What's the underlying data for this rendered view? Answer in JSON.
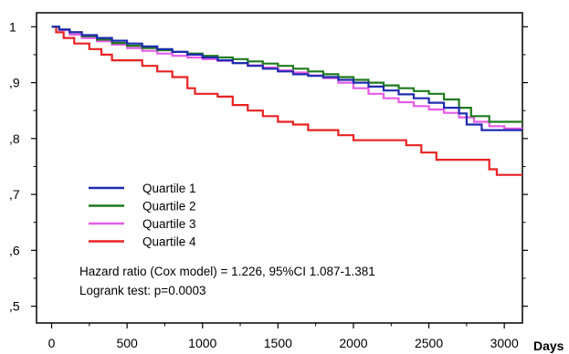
{
  "chart_data": {
    "type": "line",
    "step": true,
    "title": "",
    "xlabel": "Days",
    "ylabel": "",
    "xlim": [
      -100,
      3120
    ],
    "ylim": [
      0.47,
      1.025
    ],
    "x_ticks": [
      0,
      500,
      1000,
      1500,
      2000,
      2500,
      3000
    ],
    "x_tick_labels": [
      "0",
      "500",
      "1000",
      "1500",
      "2000",
      "2500",
      "3000"
    ],
    "y_ticks": [
      0.5,
      0.6,
      0.7,
      0.8,
      0.9,
      1.0
    ],
    "y_tick_labels": [
      ",5",
      ",6",
      ",7",
      ",8",
      ",9",
      "1"
    ],
    "grid": false,
    "legend_position": "lower-left",
    "series": [
      {
        "name": "Quartile 1",
        "color": "#1f2bb0",
        "points": [
          [
            0,
            1.0
          ],
          [
            50,
            0.995
          ],
          [
            120,
            0.99
          ],
          [
            200,
            0.985
          ],
          [
            300,
            0.98
          ],
          [
            400,
            0.975
          ],
          [
            500,
            0.97
          ],
          [
            600,
            0.965
          ],
          [
            700,
            0.96
          ],
          [
            800,
            0.955
          ],
          [
            900,
            0.95
          ],
          [
            1000,
            0.945
          ],
          [
            1100,
            0.94
          ],
          [
            1200,
            0.935
          ],
          [
            1300,
            0.93
          ],
          [
            1400,
            0.925
          ],
          [
            1500,
            0.92
          ],
          [
            1600,
            0.915
          ],
          [
            1700,
            0.912
          ],
          [
            1800,
            0.91
          ],
          [
            1900,
            0.905
          ],
          [
            2000,
            0.9
          ],
          [
            2100,
            0.893
          ],
          [
            2200,
            0.886
          ],
          [
            2300,
            0.879
          ],
          [
            2400,
            0.872
          ],
          [
            2500,
            0.864
          ],
          [
            2600,
            0.855
          ],
          [
            2700,
            0.845
          ],
          [
            2750,
            0.825
          ],
          [
            2850,
            0.815
          ],
          [
            3000,
            0.815
          ],
          [
            3120,
            0.815
          ]
        ]
      },
      {
        "name": "Quartile 2",
        "color": "#1e7a1e",
        "points": [
          [
            0,
            1.0
          ],
          [
            50,
            0.995
          ],
          [
            120,
            0.99
          ],
          [
            200,
            0.983
          ],
          [
            300,
            0.977
          ],
          [
            400,
            0.971
          ],
          [
            500,
            0.966
          ],
          [
            600,
            0.962
          ],
          [
            700,
            0.958
          ],
          [
            800,
            0.955
          ],
          [
            900,
            0.952
          ],
          [
            1000,
            0.948
          ],
          [
            1100,
            0.945
          ],
          [
            1200,
            0.942
          ],
          [
            1300,
            0.938
          ],
          [
            1400,
            0.934
          ],
          [
            1500,
            0.93
          ],
          [
            1600,
            0.925
          ],
          [
            1700,
            0.92
          ],
          [
            1800,
            0.915
          ],
          [
            1900,
            0.91
          ],
          [
            2000,
            0.905
          ],
          [
            2100,
            0.9
          ],
          [
            2200,
            0.895
          ],
          [
            2300,
            0.89
          ],
          [
            2400,
            0.885
          ],
          [
            2500,
            0.88
          ],
          [
            2600,
            0.87
          ],
          [
            2700,
            0.855
          ],
          [
            2780,
            0.84
          ],
          [
            2900,
            0.83
          ],
          [
            3120,
            0.83
          ]
        ]
      },
      {
        "name": "Quartile 3",
        "color": "#e65ce6",
        "points": [
          [
            0,
            1.0
          ],
          [
            50,
            0.994
          ],
          [
            120,
            0.986
          ],
          [
            200,
            0.98
          ],
          [
            300,
            0.974
          ],
          [
            400,
            0.968
          ],
          [
            500,
            0.962
          ],
          [
            600,
            0.957
          ],
          [
            700,
            0.952
          ],
          [
            800,
            0.948
          ],
          [
            900,
            0.945
          ],
          [
            1000,
            0.942
          ],
          [
            1100,
            0.939
          ],
          [
            1200,
            0.935
          ],
          [
            1300,
            0.931
          ],
          [
            1400,
            0.927
          ],
          [
            1500,
            0.922
          ],
          [
            1600,
            0.918
          ],
          [
            1700,
            0.913
          ],
          [
            1800,
            0.908
          ],
          [
            1900,
            0.9
          ],
          [
            2000,
            0.89
          ],
          [
            2100,
            0.88
          ],
          [
            2200,
            0.872
          ],
          [
            2300,
            0.865
          ],
          [
            2400,
            0.858
          ],
          [
            2500,
            0.852
          ],
          [
            2600,
            0.846
          ],
          [
            2700,
            0.838
          ],
          [
            2800,
            0.83
          ],
          [
            2900,
            0.822
          ],
          [
            3000,
            0.818
          ],
          [
            3120,
            0.818
          ]
        ]
      },
      {
        "name": "Quartile 4",
        "color": "#e82222",
        "points": [
          [
            0,
            1.0
          ],
          [
            30,
            0.99
          ],
          [
            80,
            0.98
          ],
          [
            150,
            0.97
          ],
          [
            250,
            0.96
          ],
          [
            330,
            0.95
          ],
          [
            400,
            0.94
          ],
          [
            600,
            0.93
          ],
          [
            700,
            0.92
          ],
          [
            800,
            0.91
          ],
          [
            900,
            0.89
          ],
          [
            950,
            0.88
          ],
          [
            1100,
            0.875
          ],
          [
            1200,
            0.86
          ],
          [
            1300,
            0.85
          ],
          [
            1400,
            0.84
          ],
          [
            1500,
            0.83
          ],
          [
            1600,
            0.825
          ],
          [
            1700,
            0.815
          ],
          [
            1900,
            0.806
          ],
          [
            2000,
            0.797
          ],
          [
            2200,
            0.797
          ],
          [
            2350,
            0.788
          ],
          [
            2450,
            0.775
          ],
          [
            2550,
            0.762
          ],
          [
            2700,
            0.762
          ],
          [
            2900,
            0.745
          ],
          [
            2950,
            0.735
          ],
          [
            3120,
            0.735
          ]
        ]
      }
    ],
    "annotations": [
      "Hazard ratio (Cox model) = 1.226, 95%CI 1.087-1.381",
      "Logrank test: p=0.0003"
    ]
  }
}
